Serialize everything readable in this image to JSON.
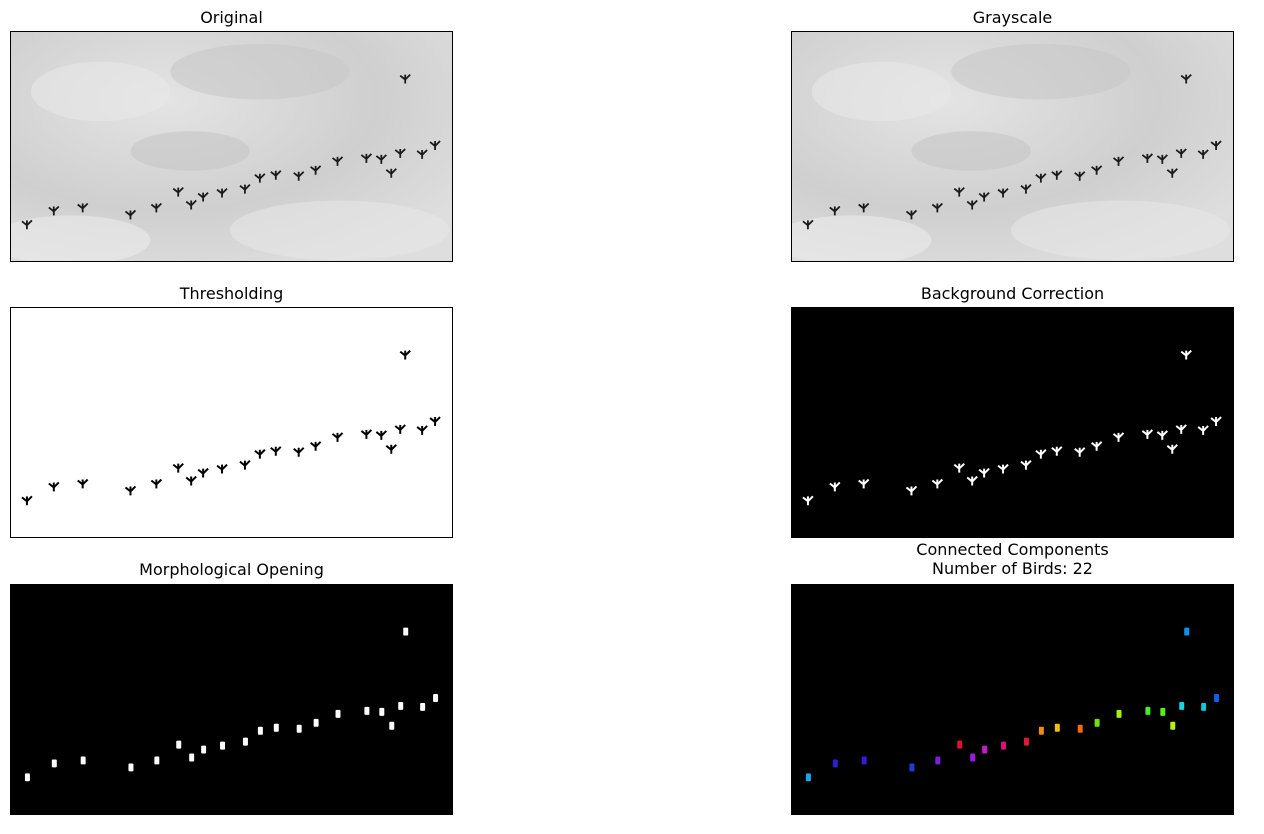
{
  "panels": {
    "p1": {
      "title": "Original",
      "style": "photo"
    },
    "p2": {
      "title": "Grayscale",
      "style": "photo"
    },
    "p3": {
      "title": "Thresholding",
      "style": "threshold"
    },
    "p4": {
      "title": "Background Correction",
      "style": "inverted"
    },
    "p5": {
      "title": "Morphological Opening",
      "style": "blobs"
    },
    "p6": {
      "title": "Connected Components\nNumber of Birds: 22",
      "style": "labels"
    }
  },
  "bird_count": 22,
  "colors": {
    "background_dark": "#000000",
    "sky_light": "#d6d6d6",
    "bird_dark": "#1a1a1a",
    "label_palette": [
      "#1aa7e8",
      "#2a1fd6",
      "#3b17e0",
      "#1a3fd6",
      "#7a1fe0",
      "#e01030",
      "#a018e0",
      "#c818d0",
      "#e01078",
      "#e01838",
      "#f08a10",
      "#f0c010",
      "#f06a10",
      "#70e010",
      "#a0f010",
      "#40f020",
      "#58f018",
      "#b8f010",
      "#10d8e8",
      "#10c8d8",
      "#1060f0",
      "#1090e8"
    ]
  }
}
